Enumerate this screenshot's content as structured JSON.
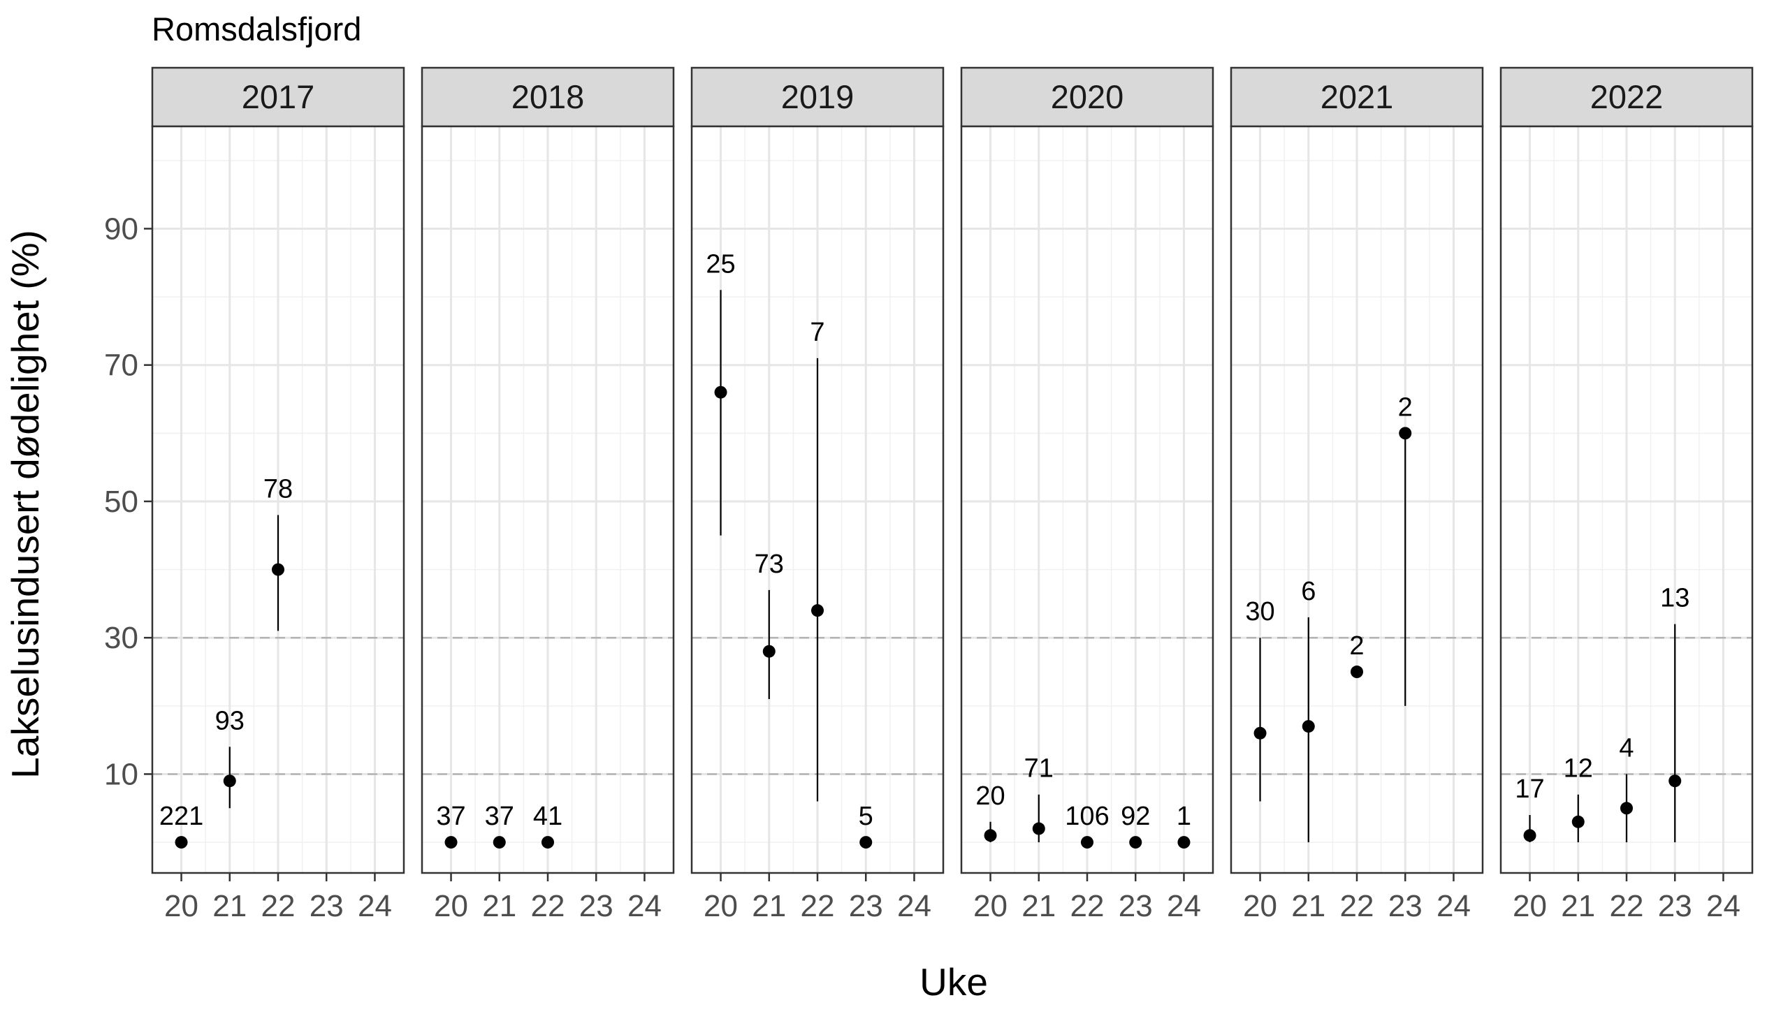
{
  "chart_data": {
    "type": "scatter",
    "title": "Romsdalsfjord",
    "xlabel": "Uke",
    "ylabel": "Lakselusindusert dødelighet (%)",
    "ylim": [
      -4.5,
      105
    ],
    "xlim": [
      19.4,
      24.6
    ],
    "x_ticks": [
      20,
      21,
      22,
      23,
      24
    ],
    "y_ticks": [
      10,
      30,
      50,
      70,
      90
    ],
    "reference_lines": [
      10,
      30
    ],
    "grid": true,
    "facets": [
      {
        "label": "2017",
        "points": [
          {
            "x": 20,
            "y": 0,
            "lo": 0,
            "hi": 0,
            "n": "221"
          },
          {
            "x": 21,
            "y": 9,
            "lo": 5,
            "hi": 14,
            "n": "93"
          },
          {
            "x": 22,
            "y": 40,
            "lo": 31,
            "hi": 48,
            "n": "78"
          }
        ]
      },
      {
        "label": "2018",
        "points": [
          {
            "x": 20,
            "y": 0,
            "lo": 0,
            "hi": 0,
            "n": "37"
          },
          {
            "x": 21,
            "y": 0,
            "lo": 0,
            "hi": 0,
            "n": "37"
          },
          {
            "x": 22,
            "y": 0,
            "lo": 0,
            "hi": 0,
            "n": "41"
          }
        ]
      },
      {
        "label": "2019",
        "points": [
          {
            "x": 20,
            "y": 66,
            "lo": 45,
            "hi": 81,
            "n": "25"
          },
          {
            "x": 21,
            "y": 28,
            "lo": 21,
            "hi": 37,
            "n": "73"
          },
          {
            "x": 22,
            "y": 34,
            "lo": 6,
            "hi": 71,
            "n": "7"
          },
          {
            "x": 23,
            "y": 0,
            "lo": 0,
            "hi": 0,
            "n": "5"
          }
        ]
      },
      {
        "label": "2020",
        "points": [
          {
            "x": 20,
            "y": 1,
            "lo": 0,
            "hi": 3,
            "n": "20"
          },
          {
            "x": 21,
            "y": 2,
            "lo": 0,
            "hi": 7,
            "n": "71"
          },
          {
            "x": 22,
            "y": 0,
            "lo": 0,
            "hi": 0,
            "n": "106"
          },
          {
            "x": 23,
            "y": 0,
            "lo": 0,
            "hi": 0,
            "n": "92"
          },
          {
            "x": 24,
            "y": 0,
            "lo": 0,
            "hi": 0,
            "n": "1"
          }
        ]
      },
      {
        "label": "2021",
        "points": [
          {
            "x": 20,
            "y": 16,
            "lo": 6,
            "hi": 30,
            "n": "30"
          },
          {
            "x": 21,
            "y": 17,
            "lo": 0,
            "hi": 33,
            "n": "6"
          },
          {
            "x": 22,
            "y": 25,
            "lo": 0,
            "hi": 0,
            "n": "2"
          },
          {
            "x": 23,
            "y": 60,
            "lo": 20,
            "hi": 60,
            "n": "2"
          }
        ]
      },
      {
        "label": "2022",
        "points": [
          {
            "x": 20,
            "y": 1,
            "lo": 0,
            "hi": 4,
            "n": "17"
          },
          {
            "x": 21,
            "y": 3,
            "lo": 0,
            "hi": 7,
            "n": "12"
          },
          {
            "x": 22,
            "y": 5,
            "lo": 0,
            "hi": 10,
            "n": "4"
          },
          {
            "x": 23,
            "y": 9,
            "lo": 0,
            "hi": 32,
            "n": "13"
          }
        ]
      }
    ]
  }
}
